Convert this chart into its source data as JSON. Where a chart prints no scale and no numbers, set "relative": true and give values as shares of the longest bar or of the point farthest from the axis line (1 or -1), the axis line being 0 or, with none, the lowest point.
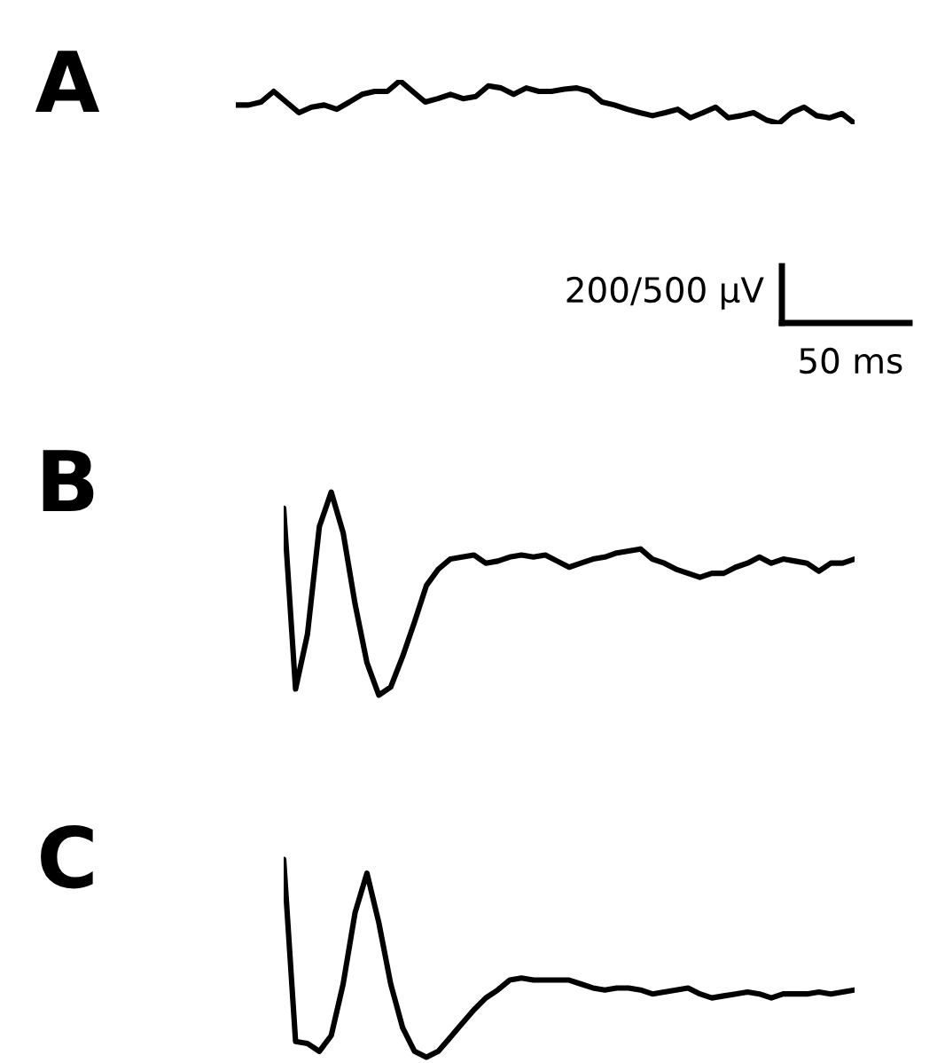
{
  "chart_data": [
    {
      "type": "line",
      "title": "A",
      "relative": true,
      "color": "#000000",
      "annotations": [
        "200/500 µV",
        "50 ms"
      ],
      "categories": [
        null,
        null,
        null,
        null,
        null,
        null,
        null,
        null,
        null,
        null,
        null,
        null,
        null,
        null,
        null,
        null,
        null,
        null,
        null,
        null,
        null,
        null,
        null,
        null,
        null,
        null,
        null,
        null,
        null,
        null,
        null,
        null,
        null,
        null,
        null,
        null,
        null,
        null,
        null,
        null,
        null,
        null,
        null,
        null,
        null,
        null,
        null,
        null,
        null,
        null
      ],
      "values": [
        0.43,
        0.43,
        0.5,
        0.75,
        0.5,
        0.25,
        0.38,
        0.43,
        0.33,
        0.5,
        0.68,
        0.75,
        0.75,
        1,
        0.75,
        0.5,
        0.58,
        0.68,
        0.58,
        0.63,
        0.88,
        0.83,
        0.68,
        0.83,
        0.75,
        0.75,
        0.8,
        0.83,
        0.75,
        0.5,
        0.43,
        0.33,
        0.25,
        0.18,
        0.25,
        0.33,
        0.13,
        0.25,
        0.38,
        0.13,
        0.18,
        0.25,
        0.08,
        0,
        0.25,
        0.38,
        0.18,
        0.13,
        0.23,
        0
      ]
    },
    {
      "type": "line",
      "title": "B",
      "relative": true,
      "color": "#000000",
      "categories": [
        null,
        null,
        null,
        null,
        null,
        null,
        null,
        null,
        null,
        null,
        null,
        null,
        null,
        null,
        null,
        null,
        null,
        null,
        null,
        null,
        null,
        null,
        null,
        null,
        null,
        null,
        null,
        null,
        null,
        null,
        null,
        null,
        null,
        null,
        null,
        null,
        null,
        null,
        null,
        null,
        null,
        null,
        null,
        null,
        null,
        null,
        null,
        null,
        null
      ],
      "values": [
        0.92,
        0.03,
        0.3,
        0.83,
        1,
        0.8,
        0.45,
        0.16,
        0,
        0.04,
        0.19,
        0.36,
        0.54,
        0.62,
        0.67,
        0.68,
        0.69,
        0.65,
        0.66,
        0.68,
        0.69,
        0.68,
        0.69,
        0.66,
        0.63,
        0.65,
        0.67,
        0.68,
        0.7,
        0.71,
        0.72,
        0.67,
        0.65,
        0.62,
        0.6,
        0.58,
        0.6,
        0.6,
        0.63,
        0.65,
        0.68,
        0.65,
        0.67,
        0.66,
        0.65,
        0.61,
        0.65,
        0.65,
        0.67
      ]
    },
    {
      "type": "line",
      "title": "C",
      "relative": true,
      "color": "#000000",
      "categories": [
        null,
        null,
        null,
        null,
        null,
        null,
        null,
        null,
        null,
        null,
        null,
        null,
        null,
        null,
        null,
        null,
        null,
        null,
        null,
        null,
        null,
        null,
        null,
        null,
        null,
        null,
        null,
        null,
        null,
        null,
        null,
        null,
        null,
        null,
        null,
        null,
        null,
        null,
        null,
        null,
        null,
        null,
        null,
        null,
        null,
        null,
        null,
        null,
        null
      ],
      "values": [
        1,
        0.08,
        0.07,
        0.03,
        0.11,
        0.37,
        0.73,
        0.93,
        0.68,
        0.37,
        0.15,
        0.03,
        0,
        0.03,
        0.1,
        0.17,
        0.24,
        0.3,
        0.34,
        0.39,
        0.4,
        0.39,
        0.39,
        0.39,
        0.39,
        0.37,
        0.35,
        0.34,
        0.35,
        0.35,
        0.34,
        0.32,
        0.33,
        0.34,
        0.35,
        0.32,
        0.3,
        0.31,
        0.32,
        0.33,
        0.32,
        0.3,
        0.32,
        0.32,
        0.32,
        0.33,
        0.32,
        0.33,
        0.34
      ]
    }
  ]
}
